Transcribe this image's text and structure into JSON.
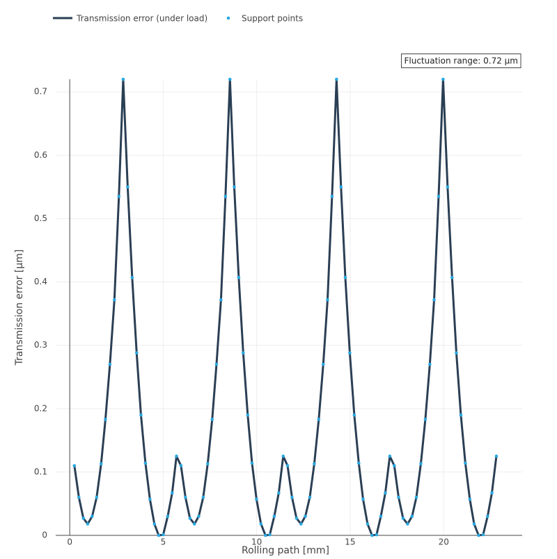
{
  "chart_data": {
    "type": "line",
    "x_label": "Rolling path [mm]",
    "y_label": "Transmission error [µm]",
    "annotation": "Fluctuation range: 0.72 µm",
    "x": [
      0.25,
      0.49,
      0.73,
      0.96,
      1.2,
      1.44,
      1.68,
      1.91,
      2.15,
      2.39,
      2.63,
      2.86,
      3.1,
      3.34,
      3.58,
      3.81,
      4.05,
      4.29,
      4.53,
      4.76,
      5.0,
      5.24,
      5.48,
      5.71,
      5.95,
      6.19,
      6.43,
      6.67,
      6.9,
      7.14,
      7.38,
      7.62,
      7.85,
      8.09,
      8.33,
      8.57,
      8.8,
      9.04,
      9.28,
      9.52,
      9.75,
      9.99,
      10.23,
      10.47,
      10.7,
      10.94,
      11.18,
      11.42,
      11.65,
      11.89,
      12.13,
      12.37,
      12.6,
      12.84,
      13.08,
      13.32,
      13.56,
      13.79,
      14.03,
      14.27,
      14.51,
      14.74,
      14.98,
      15.22,
      15.46,
      15.69,
      15.93,
      16.17,
      16.41,
      16.64,
      16.88,
      17.12,
      17.36,
      17.59,
      17.83,
      18.07,
      18.31,
      18.54,
      18.78,
      19.02,
      19.26,
      19.49,
      19.73,
      19.97,
      20.21,
      20.45,
      20.68,
      20.92,
      21.16,
      21.4,
      21.63,
      21.87,
      22.11,
      22.35,
      22.58,
      22.82
    ],
    "series": [
      {
        "name": "Transmission error (under load)",
        "color": "#2a3f54",
        "mode": "line",
        "values": [
          0.11,
          0.06,
          0.027,
          0.018,
          0.03,
          0.06,
          0.113,
          0.183,
          0.27,
          0.372,
          0.535,
          0.72,
          0.55,
          0.407,
          0.288,
          0.19,
          0.114,
          0.057,
          0.018,
          0,
          0.001,
          0.03,
          0.067,
          0.125,
          0.11,
          0.06,
          0.027,
          0.018,
          0.03,
          0.06,
          0.113,
          0.183,
          0.27,
          0.372,
          0.535,
          0.72,
          0.55,
          0.407,
          0.288,
          0.19,
          0.114,
          0.057,
          0.018,
          0,
          0.001,
          0.03,
          0.067,
          0.125,
          0.11,
          0.06,
          0.027,
          0.018,
          0.03,
          0.06,
          0.113,
          0.183,
          0.27,
          0.372,
          0.535,
          0.72,
          0.55,
          0.407,
          0.288,
          0.19,
          0.114,
          0.057,
          0.018,
          0,
          0.001,
          0.03,
          0.067,
          0.125,
          0.11,
          0.06,
          0.027,
          0.018,
          0.03,
          0.06,
          0.113,
          0.183,
          0.27,
          0.372,
          0.535,
          0.72,
          0.55,
          0.407,
          0.288,
          0.19,
          0.114,
          0.057,
          0.018,
          0,
          0.001,
          0.03,
          0.067,
          0.125
        ]
      },
      {
        "name": "Support points",
        "color": "#29a8e0",
        "mode": "markers",
        "values": [
          0.11,
          0.06,
          0.027,
          0.018,
          0.03,
          0.06,
          0.113,
          0.183,
          0.27,
          0.372,
          0.535,
          0.72,
          0.55,
          0.407,
          0.288,
          0.19,
          0.114,
          0.057,
          0.018,
          0,
          0.001,
          0.03,
          0.067,
          0.125,
          0.11,
          0.06,
          0.027,
          0.018,
          0.03,
          0.06,
          0.113,
          0.183,
          0.27,
          0.372,
          0.535,
          0.72,
          0.55,
          0.407,
          0.288,
          0.19,
          0.114,
          0.057,
          0.018,
          0,
          0.001,
          0.03,
          0.067,
          0.125,
          0.11,
          0.06,
          0.027,
          0.018,
          0.03,
          0.06,
          0.113,
          0.183,
          0.27,
          0.372,
          0.535,
          0.72,
          0.55,
          0.407,
          0.288,
          0.19,
          0.114,
          0.057,
          0.018,
          0,
          0.001,
          0.03,
          0.067,
          0.125,
          0.11,
          0.06,
          0.027,
          0.018,
          0.03,
          0.06,
          0.113,
          0.183,
          0.27,
          0.372,
          0.535,
          0.72,
          0.55,
          0.407,
          0.288,
          0.19,
          0.114,
          0.057,
          0.018,
          0,
          0.001,
          0.03,
          0.067,
          0.125
        ]
      }
    ],
    "xlim": [
      -0.75,
      24.2
    ],
    "ylim": [
      0,
      0.72
    ],
    "xticks": [
      0,
      5,
      10,
      15,
      20
    ],
    "yticks": [
      0,
      0.1,
      0.2,
      0.3,
      0.4,
      0.5,
      0.6,
      0.7
    ],
    "grid": true
  }
}
